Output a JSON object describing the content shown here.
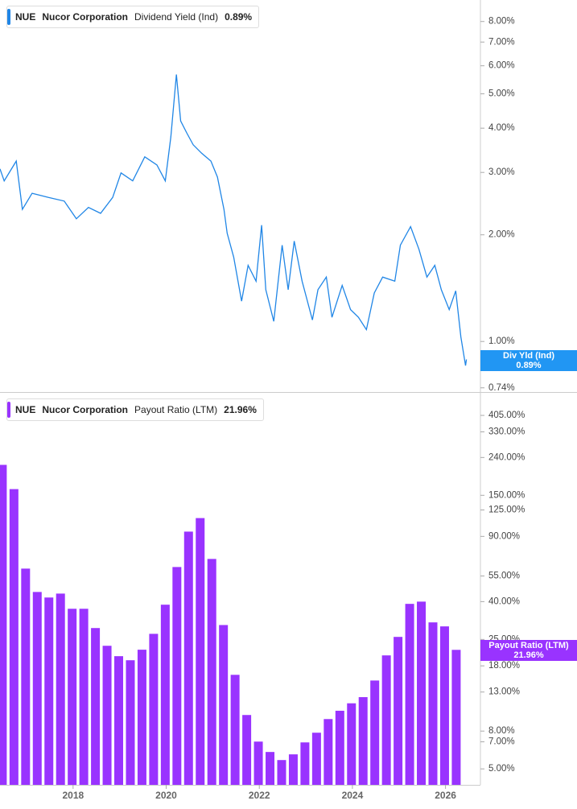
{
  "chart_data": [
    {
      "type": "line",
      "ticker": "NUE",
      "name": "Nucor Corporation",
      "metric": "Dividend Yield (Ind)",
      "value_label": "0.89%",
      "marker_label": "Div Yld (Ind)",
      "color": "#2086e6",
      "log_scale": true,
      "xlim": [
        2016.43,
        2026.75
      ],
      "ylim": [
        0.72,
        9.2
      ],
      "yticks": [
        {
          "value": 8,
          "label": "8.00%"
        },
        {
          "value": 7,
          "label": "7.00%"
        },
        {
          "value": 6,
          "label": "6.00%"
        },
        {
          "value": 5,
          "label": "5.00%"
        },
        {
          "value": 4,
          "label": "4.00%"
        },
        {
          "value": 3,
          "label": "3.00%"
        },
        {
          "value": 2,
          "label": "2.00%"
        },
        {
          "value": 1,
          "label": "1.00%"
        },
        {
          "value": 0.74,
          "label": "0.74%"
        }
      ],
      "x": [
        2016.43,
        2016.52,
        2016.78,
        2016.91,
        2017.12,
        2017.47,
        2017.81,
        2018.07,
        2018.33,
        2018.59,
        2018.85,
        2019.03,
        2019.28,
        2019.54,
        2019.8,
        2019.98,
        2020.1,
        2020.22,
        2020.31,
        2020.44,
        2020.58,
        2020.76,
        2020.96,
        2021.1,
        2021.24,
        2021.31,
        2021.45,
        2021.62,
        2021.76,
        2021.93,
        2022.05,
        2022.14,
        2022.31,
        2022.49,
        2022.62,
        2022.75,
        2022.92,
        2023.14,
        2023.26,
        2023.44,
        2023.56,
        2023.78,
        2023.96,
        2024.13,
        2024.3,
        2024.47,
        2024.65,
        2024.91,
        2025.03,
        2025.25,
        2025.43,
        2025.6,
        2025.77,
        2025.91,
        2026.08,
        2026.22,
        2026.33,
        2026.43,
        2026.45
      ],
      "values": [
        3.07,
        2.84,
        3.23,
        2.36,
        2.62,
        2.55,
        2.49,
        2.22,
        2.39,
        2.3,
        2.55,
        2.99,
        2.84,
        3.32,
        3.15,
        2.84,
        3.78,
        5.67,
        4.19,
        3.88,
        3.59,
        3.4,
        3.23,
        2.91,
        2.36,
        2.02,
        1.73,
        1.3,
        1.64,
        1.48,
        2.13,
        1.4,
        1.14,
        1.87,
        1.4,
        1.92,
        1.48,
        1.15,
        1.4,
        1.52,
        1.17,
        1.44,
        1.23,
        1.17,
        1.08,
        1.37,
        1.52,
        1.48,
        1.87,
        2.11,
        1.82,
        1.52,
        1.64,
        1.4,
        1.23,
        1.39,
        1.03,
        0.855,
        0.89
      ]
    },
    {
      "type": "bar",
      "ticker": "NUE",
      "name": "Nucor Corporation",
      "metric": "Payout Ratio (LTM)",
      "value_label": "21.96%",
      "marker_label": "Payout Ratio (LTM)",
      "color": "#9933ff",
      "log_scale": true,
      "xlim": [
        2016.43,
        2026.75
      ],
      "xticks": [
        2018,
        2020,
        2022,
        2024,
        2026
      ],
      "ylim": [
        4.1,
        490
      ],
      "yticks": [
        {
          "value": 405,
          "label": "405.00%"
        },
        {
          "value": 330,
          "label": "330.00%"
        },
        {
          "value": 240,
          "label": "240.00%"
        },
        {
          "value": 150,
          "label": "150.00%"
        },
        {
          "value": 125,
          "label": "125.00%"
        },
        {
          "value": 90,
          "label": "90.00%"
        },
        {
          "value": 55,
          "label": "55.00%"
        },
        {
          "value": 40,
          "label": "40.00%"
        },
        {
          "value": 25,
          "label": "25.00%"
        },
        {
          "value": 18,
          "label": "18.00%"
        },
        {
          "value": 13,
          "label": "13.00%"
        },
        {
          "value": 8,
          "label": "8.00%"
        },
        {
          "value": 7,
          "label": "7.00%"
        },
        {
          "value": 5,
          "label": "5.00%"
        }
      ],
      "x": [
        2016.48,
        2016.73,
        2016.98,
        2017.23,
        2017.48,
        2017.73,
        2017.98,
        2018.23,
        2018.48,
        2018.73,
        2018.98,
        2019.23,
        2019.48,
        2019.73,
        2019.98,
        2020.23,
        2020.48,
        2020.73,
        2020.98,
        2021.23,
        2021.48,
        2021.73,
        2021.98,
        2022.23,
        2022.48,
        2022.73,
        2022.98,
        2023.23,
        2023.48,
        2023.73,
        2023.98,
        2024.23,
        2024.48,
        2024.73,
        2024.98,
        2025.23,
        2025.48,
        2025.73,
        2025.98,
        2026.23
      ],
      "values": [
        219,
        162,
        60.3,
        45.1,
        42.1,
        44.2,
        36.6,
        36.6,
        28.8,
        23.1,
        20.3,
        19.3,
        22.0,
        26.8,
        38.5,
        61.5,
        95.5,
        113,
        68,
        29.9,
        16.1,
        9.77,
        7.02,
        6.17,
        5.58,
        5.99,
        6.95,
        7.84,
        9.29,
        10.3,
        11.3,
        12.2,
        15.0,
        20.5,
        25.8,
        38.9,
        40.0,
        30.9,
        29.4,
        21.96
      ]
    }
  ]
}
